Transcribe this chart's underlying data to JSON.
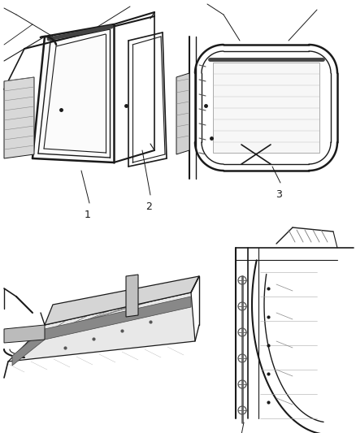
{
  "background_color": "#ffffff",
  "figure_width": 4.38,
  "figure_height": 5.33,
  "dpi": 100,
  "line_color": "#1a1a1a",
  "label_color": "#1a1a1a",
  "gray_light": "#cccccc",
  "gray_med": "#999999",
  "gray_dark": "#555555"
}
